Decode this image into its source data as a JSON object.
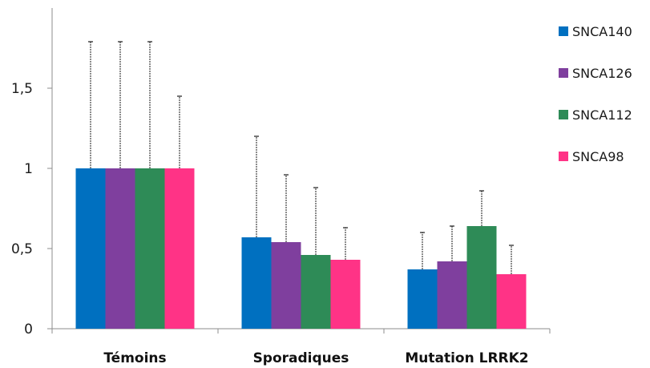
{
  "chart_data": {
    "type": "bar",
    "categories": [
      "Témoins",
      "Sporadiques",
      "Mutation LRRK2"
    ],
    "series": [
      {
        "name": "SNCA140",
        "color": "#0070C0",
        "values": [
          1.0,
          0.57,
          0.37
        ],
        "errors": [
          0.79,
          0.63,
          0.23
        ]
      },
      {
        "name": "SNCA126",
        "color": "#7F3F9E",
        "values": [
          1.0,
          0.54,
          0.42
        ],
        "errors": [
          0.79,
          0.42,
          0.22
        ]
      },
      {
        "name": "SNCA112",
        "color": "#2E8B57",
        "values": [
          1.0,
          0.46,
          0.64
        ],
        "errors": [
          0.79,
          0.42,
          0.22
        ]
      },
      {
        "name": "SNCA98",
        "color": "#FF3386",
        "values": [
          1.0,
          0.43,
          0.34
        ],
        "errors": [
          0.45,
          0.2,
          0.18
        ]
      }
    ],
    "ylim": [
      0,
      2.0
    ],
    "yticks": [
      0,
      0.5,
      1,
      1.5
    ],
    "ytick_labels": [
      "0",
      "0,5",
      "1",
      "1,5"
    ],
    "error_bars": "positive",
    "grid": false,
    "legend": "right"
  }
}
